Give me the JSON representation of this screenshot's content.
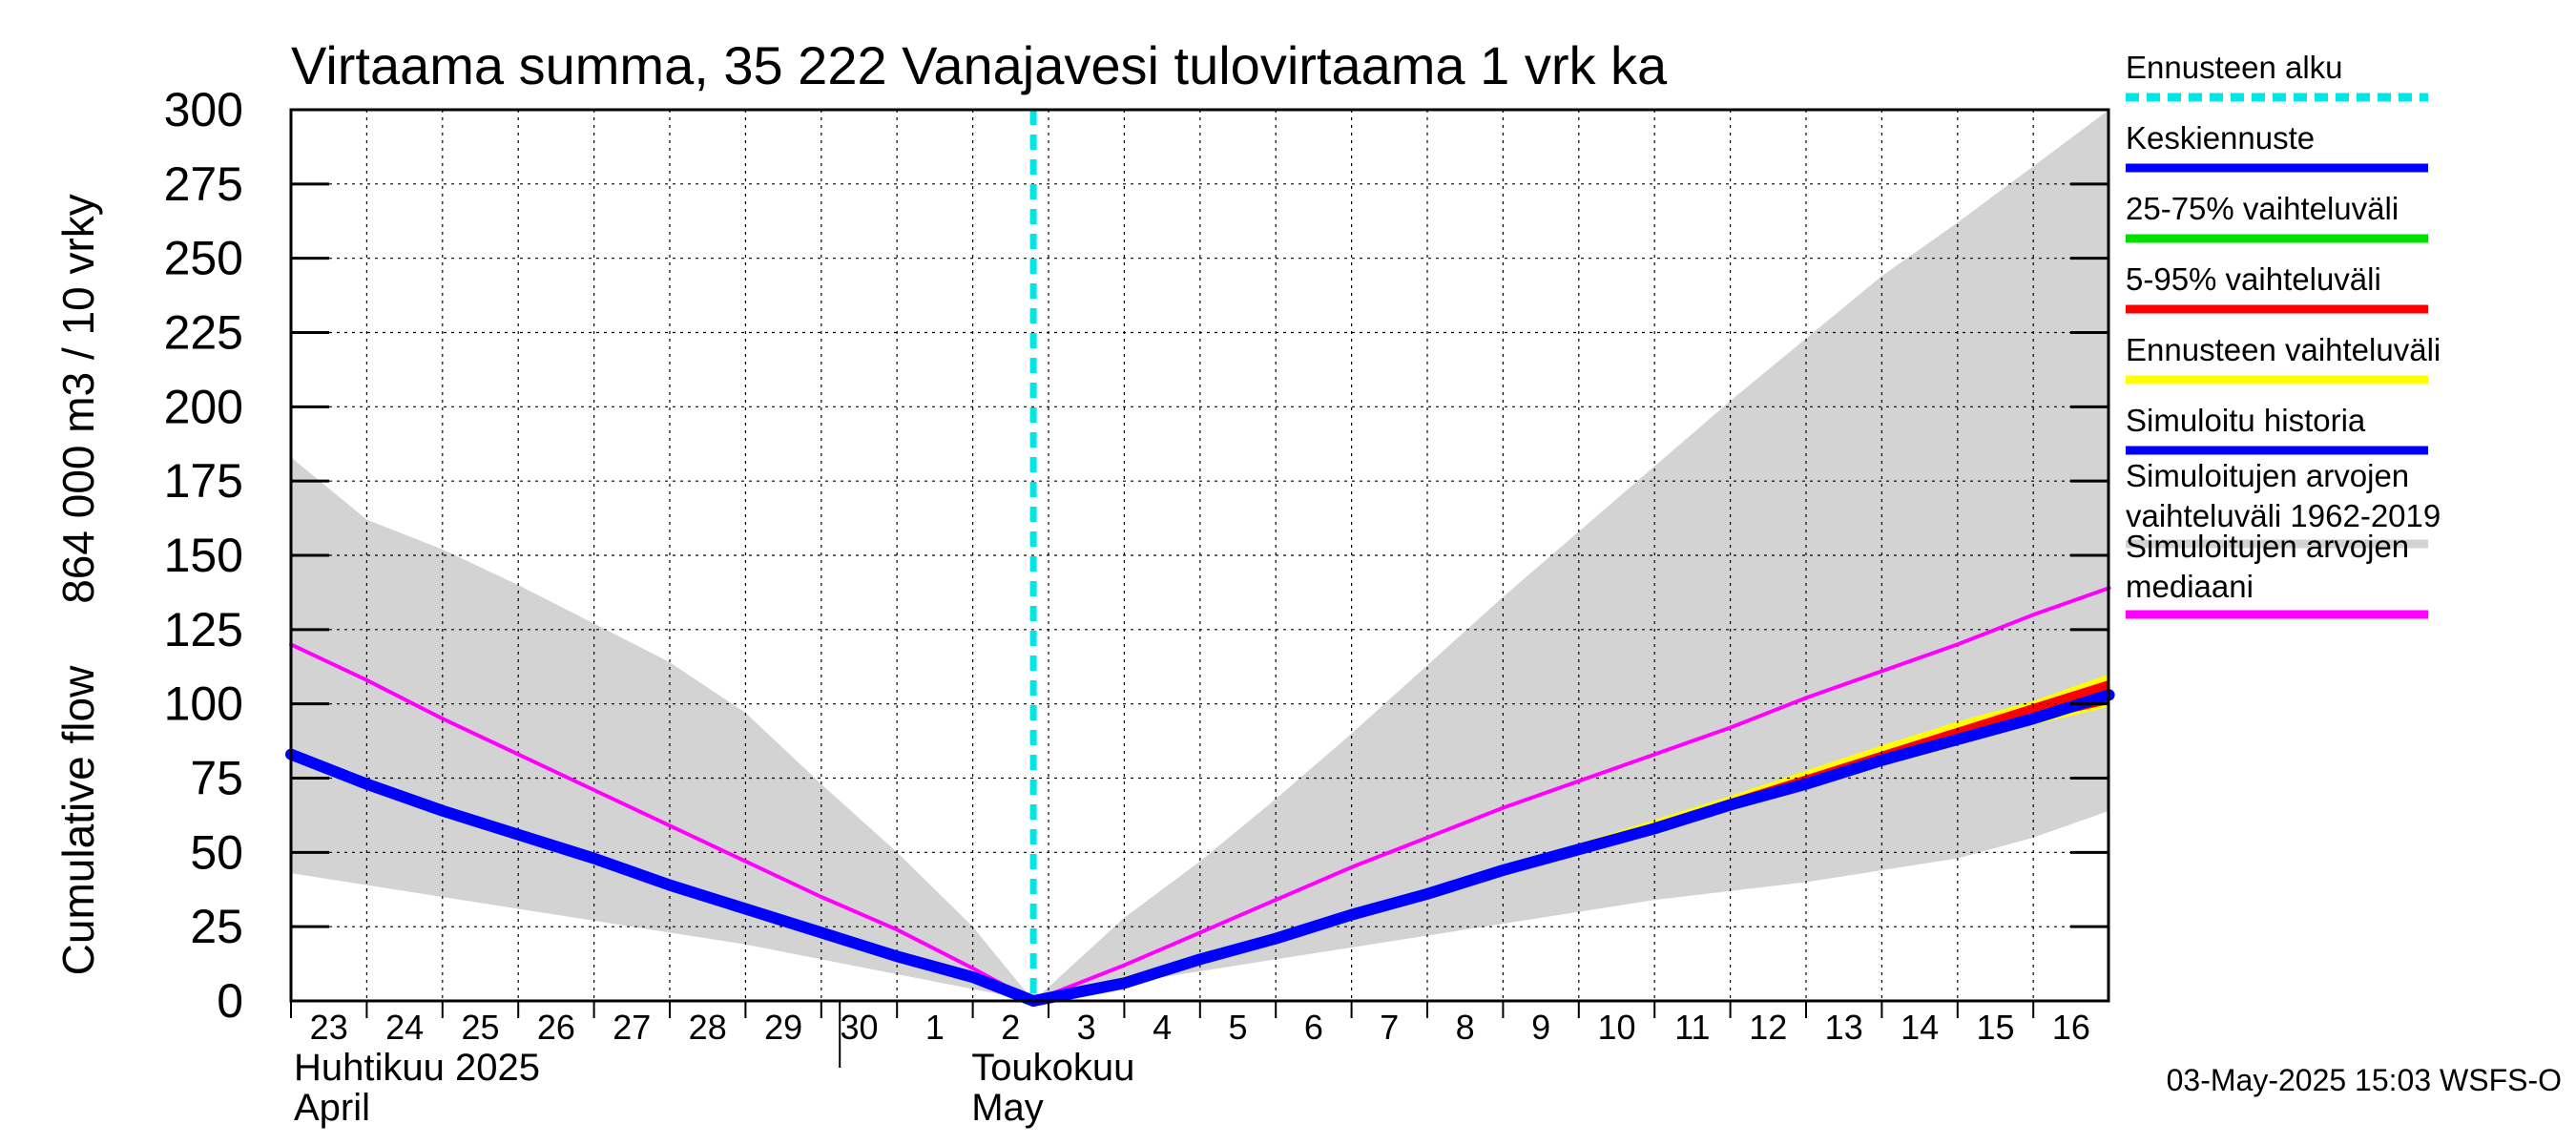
{
  "chart_data": {
    "type": "line",
    "title": "Virtaama summa, 35 222 Vanajavesi tulovirtaama 1 vrk ka",
    "ylabel_lines": [
      "Cumulative flow",
      "864 000 m3 / 10 vrky"
    ],
    "ylim": [
      0,
      300
    ],
    "yticks": [
      0,
      25,
      50,
      75,
      100,
      125,
      150,
      175,
      200,
      225,
      250,
      275,
      300
    ],
    "xlim": [
      0,
      25
    ],
    "xticks": [
      {
        "x": 0,
        "label": "23"
      },
      {
        "x": 1,
        "label": "24"
      },
      {
        "x": 2,
        "label": "25"
      },
      {
        "x": 3,
        "label": "26"
      },
      {
        "x": 4,
        "label": "27"
      },
      {
        "x": 5,
        "label": "28"
      },
      {
        "x": 6,
        "label": "29"
      },
      {
        "x": 7,
        "label": "30"
      },
      {
        "x": 8,
        "label": "1"
      },
      {
        "x": 9,
        "label": "2"
      },
      {
        "x": 10,
        "label": "3"
      },
      {
        "x": 11,
        "label": "4"
      },
      {
        "x": 12,
        "label": "5"
      },
      {
        "x": 13,
        "label": "6"
      },
      {
        "x": 14,
        "label": "7"
      },
      {
        "x": 15,
        "label": "8"
      },
      {
        "x": 16,
        "label": "9"
      },
      {
        "x": 17,
        "label": "10"
      },
      {
        "x": 18,
        "label": "11"
      },
      {
        "x": 19,
        "label": "12"
      },
      {
        "x": 20,
        "label": "13"
      },
      {
        "x": 21,
        "label": "14"
      },
      {
        "x": 22,
        "label": "15"
      },
      {
        "x": 23,
        "label": "16"
      }
    ],
    "months": [
      {
        "x": 0,
        "line1": "Huhtikuu  2025",
        "line2": "April"
      },
      {
        "x": 8,
        "line1": "Toukokuu",
        "line2": "May"
      }
    ],
    "forecast_start_x": 9.8,
    "series": [
      {
        "name": "Simuloitujen arvojen vaihteluväli 1962-2019",
        "kind": "band",
        "color": "#d3d3d3",
        "x": [
          0,
          1,
          2,
          3,
          4,
          5,
          6,
          7,
          8,
          9,
          9.8,
          11,
          12,
          13,
          14,
          15,
          16,
          17,
          18,
          19,
          20,
          21,
          22,
          23,
          24
        ],
        "upper": [
          183,
          162,
          152,
          140,
          127,
          114,
          97,
          73,
          50,
          25,
          0,
          28,
          47,
          68,
          90,
          113,
          136,
          158,
          180,
          202,
          223,
          244,
          262,
          281,
          300
        ],
        "lower": [
          43,
          39,
          35,
          31,
          27,
          23,
          19,
          14,
          9,
          4,
          0,
          6,
          10,
          14,
          18,
          22,
          26,
          30,
          34,
          37,
          40,
          44,
          48,
          55,
          64
        ]
      },
      {
        "name": "Ennusteen vaihteluväli",
        "kind": "band",
        "color": "#ffff00",
        "x": [
          9.8,
          13,
          15,
          17,
          19,
          21,
          22,
          23,
          24
        ],
        "upper": [
          0,
          22,
          37,
          53,
          69,
          86,
          94,
          101,
          110
        ],
        "lower": [
          0,
          20,
          35,
          50,
          64,
          79,
          86,
          93,
          99
        ]
      },
      {
        "name": "5-95% vaihteluväli",
        "kind": "band",
        "color": "#ff0000",
        "x": [
          9.8,
          13,
          15,
          17,
          19,
          21,
          22,
          23,
          24
        ],
        "upper": [
          0,
          21,
          36,
          52,
          68,
          84,
          92,
          100,
          108
        ],
        "lower": [
          0,
          20,
          35,
          50,
          65,
          80,
          87,
          94,
          100
        ]
      },
      {
        "name": "Simuloitujen arvojen mediaani",
        "kind": "line",
        "color": "#ff00ff",
        "width": 4,
        "x": [
          0,
          1,
          2,
          3,
          4,
          5,
          6,
          7,
          8,
          9,
          9.8,
          11,
          12,
          13,
          14,
          15,
          16,
          17,
          18,
          19,
          20,
          21,
          22,
          23,
          24
        ],
        "y": [
          120,
          108,
          95,
          83,
          71,
          59,
          47,
          35,
          24,
          11,
          0,
          12,
          23,
          34,
          45,
          55,
          65,
          74,
          83,
          92,
          102,
          111,
          120,
          130,
          139
        ]
      },
      {
        "name": "Keskiennuste",
        "kind": "line",
        "color": "#0000ff",
        "width": 12,
        "x": [
          9.8,
          11,
          12,
          13,
          14,
          15,
          16,
          17,
          18,
          19,
          20,
          21,
          22,
          23,
          24
        ],
        "y": [
          0,
          6,
          14,
          21,
          29,
          36,
          44,
          51,
          58,
          66,
          73,
          81,
          88,
          95,
          103
        ]
      },
      {
        "name": "Simuloitu historia",
        "kind": "line",
        "color": "#0000ff",
        "width": 12,
        "x": [
          0,
          1,
          2,
          3,
          4,
          5,
          6,
          7,
          8,
          9,
          9.8
        ],
        "y": [
          83,
          73,
          64,
          56,
          48,
          39,
          31,
          23,
          15,
          8,
          0
        ]
      }
    ],
    "legend": [
      {
        "label": "Ennusteen alku",
        "color": "#00e5e5",
        "style": "dashed"
      },
      {
        "label": "Keskiennuste",
        "color": "#0000ff",
        "style": "solid"
      },
      {
        "label": "25-75% vaihteluväli",
        "color": "#00e000",
        "style": "solid"
      },
      {
        "label": "5-95% vaihteluväli",
        "color": "#ff0000",
        "style": "solid"
      },
      {
        "label": "Ennusteen vaihteluväli",
        "color": "#ffff00",
        "style": "solid"
      },
      {
        "label": "Simuloitu historia",
        "color": "#0000ff",
        "style": "solid"
      },
      {
        "label": "Simuloitujen arvojen\nvaihteluväli 1962-2019",
        "color": "#d3d3d3",
        "style": "solid"
      },
      {
        "label": "Simuloitujen arvojen\nmediaani",
        "color": "#ff00ff",
        "style": "solid"
      }
    ],
    "footer": "03-May-2025 15:03 WSFS-O"
  }
}
